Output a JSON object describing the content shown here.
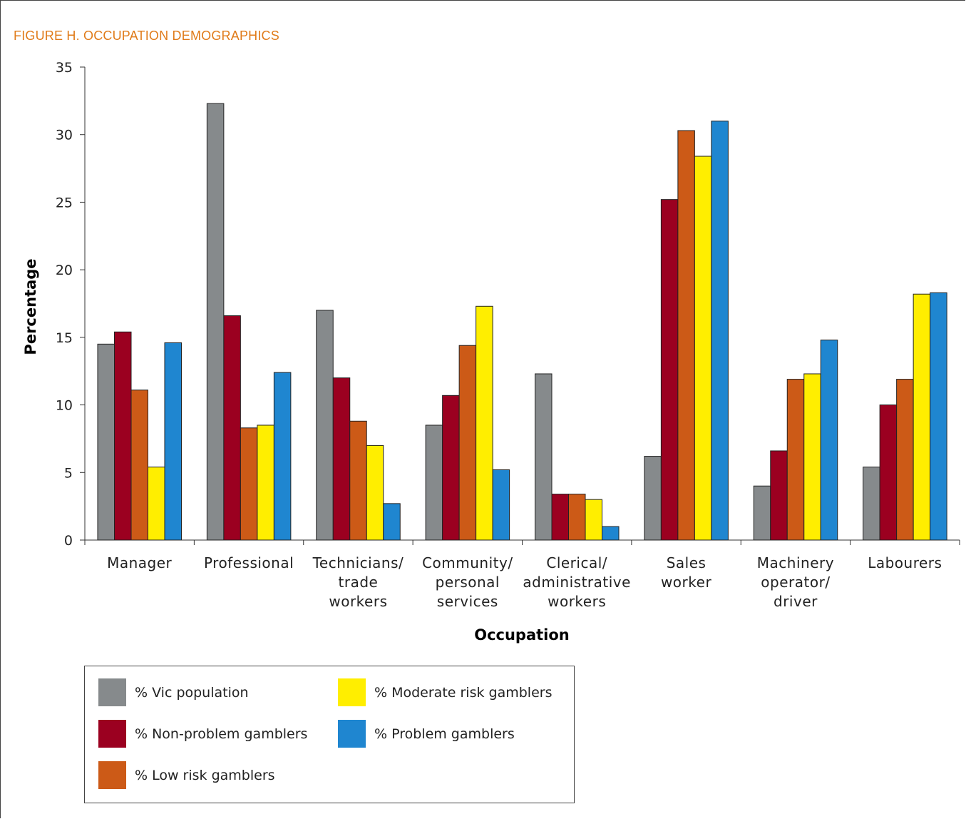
{
  "figure": {
    "title": "FIGURE H. OCCUPATION DEMOGRAPHICS",
    "title_color": "#e07b1a"
  },
  "chart_data": {
    "type": "bar",
    "title": "FIGURE H. OCCUPATION DEMOGRAPHICS",
    "xlabel": "Occupation",
    "ylabel": "Percentage",
    "ylim": [
      0,
      35
    ],
    "yticks": [
      0,
      5,
      10,
      15,
      20,
      25,
      30,
      35
    ],
    "grid": false,
    "legend_position": "bottom-left",
    "categories": [
      [
        "Manager"
      ],
      [
        "Professional"
      ],
      [
        "Technicians/",
        "trade",
        "workers"
      ],
      [
        "Community/",
        "personal",
        "services"
      ],
      [
        "Clerical/",
        "administrative",
        "workers"
      ],
      [
        "Sales",
        "worker"
      ],
      [
        "Machinery",
        "operator/",
        "driver"
      ],
      [
        "Labourers"
      ]
    ],
    "series": [
      {
        "name": "% Vic population",
        "color": "#868a8c",
        "values": [
          14.5,
          32.3,
          17.0,
          8.5,
          12.3,
          6.2,
          4.0,
          5.4
        ]
      },
      {
        "name": "% Non-problem gamblers",
        "color": "#9b0020",
        "values": [
          15.4,
          16.6,
          12.0,
          10.7,
          3.4,
          25.2,
          6.6,
          10.0
        ]
      },
      {
        "name": "% Low risk gamblers",
        "color": "#cc5a17",
        "values": [
          11.1,
          8.3,
          8.8,
          14.4,
          3.4,
          30.3,
          11.9,
          11.9
        ]
      },
      {
        "name": "% Moderate risk gamblers",
        "color": "#ffee00",
        "values": [
          5.4,
          8.5,
          7.0,
          17.3,
          3.0,
          28.4,
          12.3,
          18.2
        ]
      },
      {
        "name": "% Problem gamblers",
        "color": "#1f86d0",
        "values": [
          14.6,
          12.4,
          2.7,
          5.2,
          1.0,
          31.0,
          14.8,
          18.3
        ]
      }
    ]
  }
}
